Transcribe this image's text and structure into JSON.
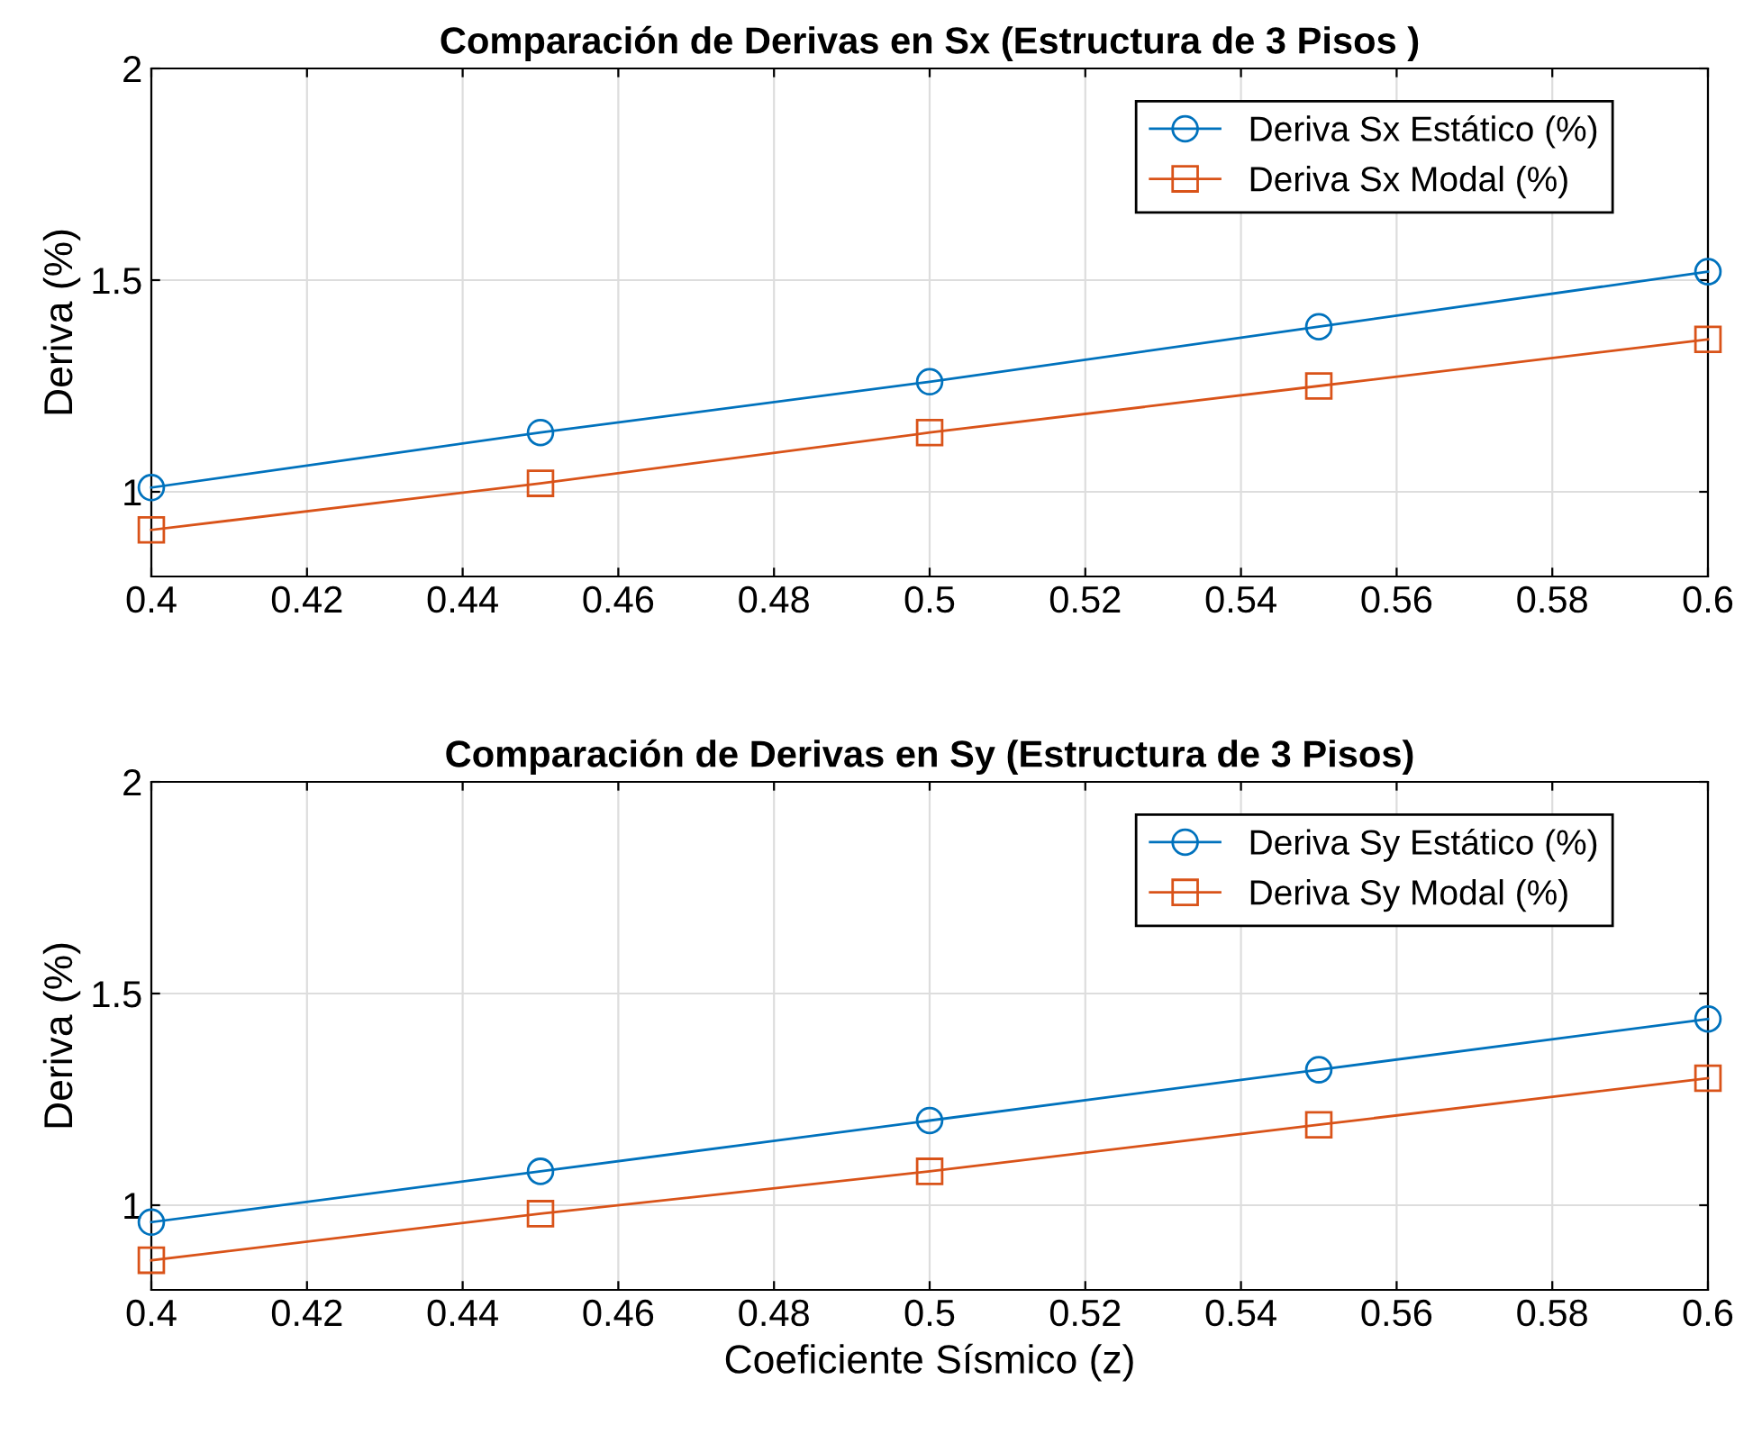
{
  "chart_data": [
    {
      "type": "line",
      "title": "Comparación de Derivas en Sx (Estructura de 3 Pisos )",
      "ylabel": "Deriva (%)",
      "x": [
        0.4,
        0.45,
        0.5,
        0.55,
        0.6
      ],
      "series": [
        {
          "name": "Deriva Sx Estático (%)",
          "color": "#0072bd",
          "marker": "circle",
          "values": [
            1.01,
            1.14,
            1.26,
            1.39,
            1.52
          ]
        },
        {
          "name": "Deriva Sx Modal (%)",
          "color": "#d95319",
          "marker": "square",
          "values": [
            0.91,
            1.02,
            1.14,
            1.25,
            1.36
          ]
        }
      ],
      "xlim": [
        0.4,
        0.6
      ],
      "xticks": [
        0.4,
        0.42,
        0.44,
        0.46,
        0.48,
        0.5,
        0.52,
        0.54,
        0.56,
        0.58,
        0.6
      ],
      "ylim": [
        0.8,
        2
      ],
      "yticks": [
        1,
        1.5,
        2
      ],
      "grid": true,
      "legend": "top right"
    },
    {
      "type": "line",
      "title": "Comparación de Derivas en Sy (Estructura de 3 Pisos)",
      "xlabel": "Coeficiente Sísmico (z)",
      "ylabel": "Deriva (%)",
      "x": [
        0.4,
        0.45,
        0.5,
        0.55,
        0.6
      ],
      "series": [
        {
          "name": "Deriva Sy Estático (%)",
          "color": "#0072bd",
          "marker": "circle",
          "values": [
            0.96,
            1.08,
            1.2,
            1.32,
            1.44
          ]
        },
        {
          "name": "Deriva Sy Modal (%)",
          "color": "#d95319",
          "marker": "square",
          "values": [
            0.87,
            0.98,
            1.08,
            1.19,
            1.3
          ]
        }
      ],
      "xlim": [
        0.4,
        0.6
      ],
      "xticks": [
        0.4,
        0.42,
        0.44,
        0.46,
        0.48,
        0.5,
        0.52,
        0.54,
        0.56,
        0.58,
        0.6
      ],
      "ylim": [
        0.8,
        2
      ],
      "yticks": [
        1,
        1.5,
        2
      ],
      "grid": true,
      "legend": "top right"
    }
  ]
}
